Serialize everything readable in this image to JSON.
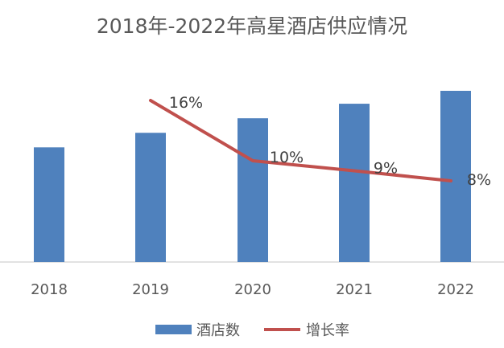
{
  "chart_data": {
    "type": "bar",
    "title": "2018年-2022年高星酒店供应情况",
    "categories": [
      "2018",
      "2019",
      "2020",
      "2021",
      "2022"
    ],
    "bar_series": {
      "name": "酒店数",
      "color": "#4f81bd",
      "relative_values": [
        0.71,
        0.8,
        0.89,
        0.98,
        1.06
      ]
    },
    "line_series": {
      "name": "增长率",
      "color": "#c0504d",
      "values": [
        null,
        16,
        10,
        9,
        8
      ],
      "labels": [
        "",
        "16%",
        "10%",
        "9%",
        "8%"
      ]
    },
    "grid": false,
    "legend_position": "bottom"
  }
}
